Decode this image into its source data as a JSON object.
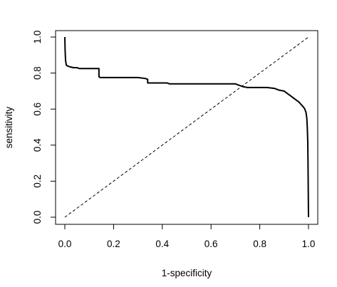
{
  "chart_data": {
    "type": "line",
    "title": "",
    "xlabel": "1-specificity",
    "ylabel": "sensitivity",
    "xlim": [
      0,
      1
    ],
    "ylim": [
      0,
      1
    ],
    "x_ticks": [
      "0.0",
      "0.2",
      "0.4",
      "0.6",
      "0.8",
      "1.0"
    ],
    "y_ticks": [
      "0.0",
      "0.2",
      "0.4",
      "0.6",
      "0.8",
      "1.0"
    ],
    "grid": false,
    "legend": "none",
    "series": [
      {
        "style": "solid",
        "color": "#000000",
        "x": [
          0.0,
          0.001,
          0.003,
          0.006,
          0.01,
          0.02,
          0.035,
          0.05,
          0.06,
          0.1,
          0.14,
          0.14,
          0.145,
          0.2,
          0.25,
          0.3,
          0.33,
          0.34,
          0.34,
          0.4,
          0.42,
          0.43,
          0.5,
          0.6,
          0.7,
          0.71,
          0.72,
          0.73,
          0.75,
          0.8,
          0.83,
          0.86,
          0.88,
          0.9,
          0.91,
          0.92,
          0.93,
          0.94,
          0.95,
          0.96,
          0.97,
          0.98,
          0.985,
          0.99,
          0.993,
          0.995,
          0.997,
          0.998,
          0.999,
          1.0
        ],
        "y": [
          1.0,
          0.93,
          0.87,
          0.845,
          0.84,
          0.835,
          0.83,
          0.83,
          0.825,
          0.825,
          0.825,
          0.78,
          0.775,
          0.775,
          0.775,
          0.775,
          0.77,
          0.765,
          0.745,
          0.745,
          0.745,
          0.74,
          0.74,
          0.74,
          0.74,
          0.735,
          0.73,
          0.725,
          0.72,
          0.72,
          0.72,
          0.715,
          0.705,
          0.7,
          0.69,
          0.68,
          0.67,
          0.66,
          0.65,
          0.64,
          0.625,
          0.61,
          0.6,
          0.58,
          0.55,
          0.5,
          0.42,
          0.3,
          0.15,
          0.0
        ]
      },
      {
        "style": "dashed",
        "color": "#000000",
        "x": [
          0,
          1
        ],
        "y": [
          0,
          1
        ]
      }
    ]
  }
}
